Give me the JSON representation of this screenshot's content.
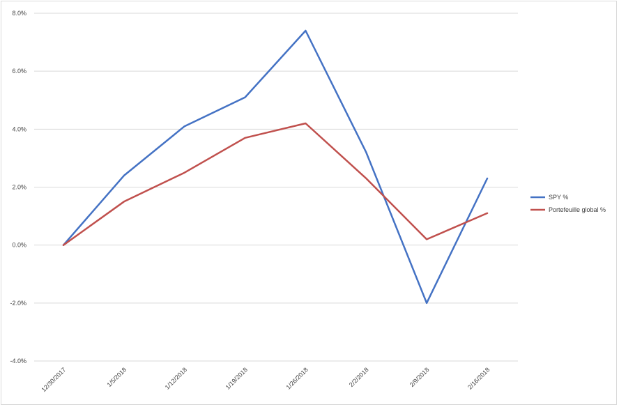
{
  "chart_data": {
    "type": "line",
    "title": "",
    "xlabel": "",
    "ylabel": "",
    "categories": [
      "12/30/2017",
      "1/5/2018",
      "1/12/2018",
      "1/19/2018",
      "1/26/2018",
      "2/2/2018",
      "2/9/2018",
      "2/16/2018"
    ],
    "ylim": [
      -0.04,
      0.08
    ],
    "yticks": [
      -0.04,
      -0.02,
      0.0,
      0.02,
      0.04,
      0.06,
      0.08
    ],
    "ytick_labels": [
      "-4.0%",
      "-2.0%",
      "0.0%",
      "2.0%",
      "4.0%",
      "6.0%",
      "8.0%"
    ],
    "grid": true,
    "legend_position": "right",
    "series": [
      {
        "name": "SPY %",
        "color": "#4472c4",
        "values": [
          0.0,
          0.024,
          0.041,
          0.051,
          0.074,
          0.032,
          -0.02,
          0.023
        ]
      },
      {
        "name": "Portefeuille global %",
        "color": "#c0504d",
        "values": [
          0.0,
          0.015,
          0.025,
          0.037,
          0.042,
          0.023,
          0.002,
          0.011
        ]
      }
    ]
  }
}
